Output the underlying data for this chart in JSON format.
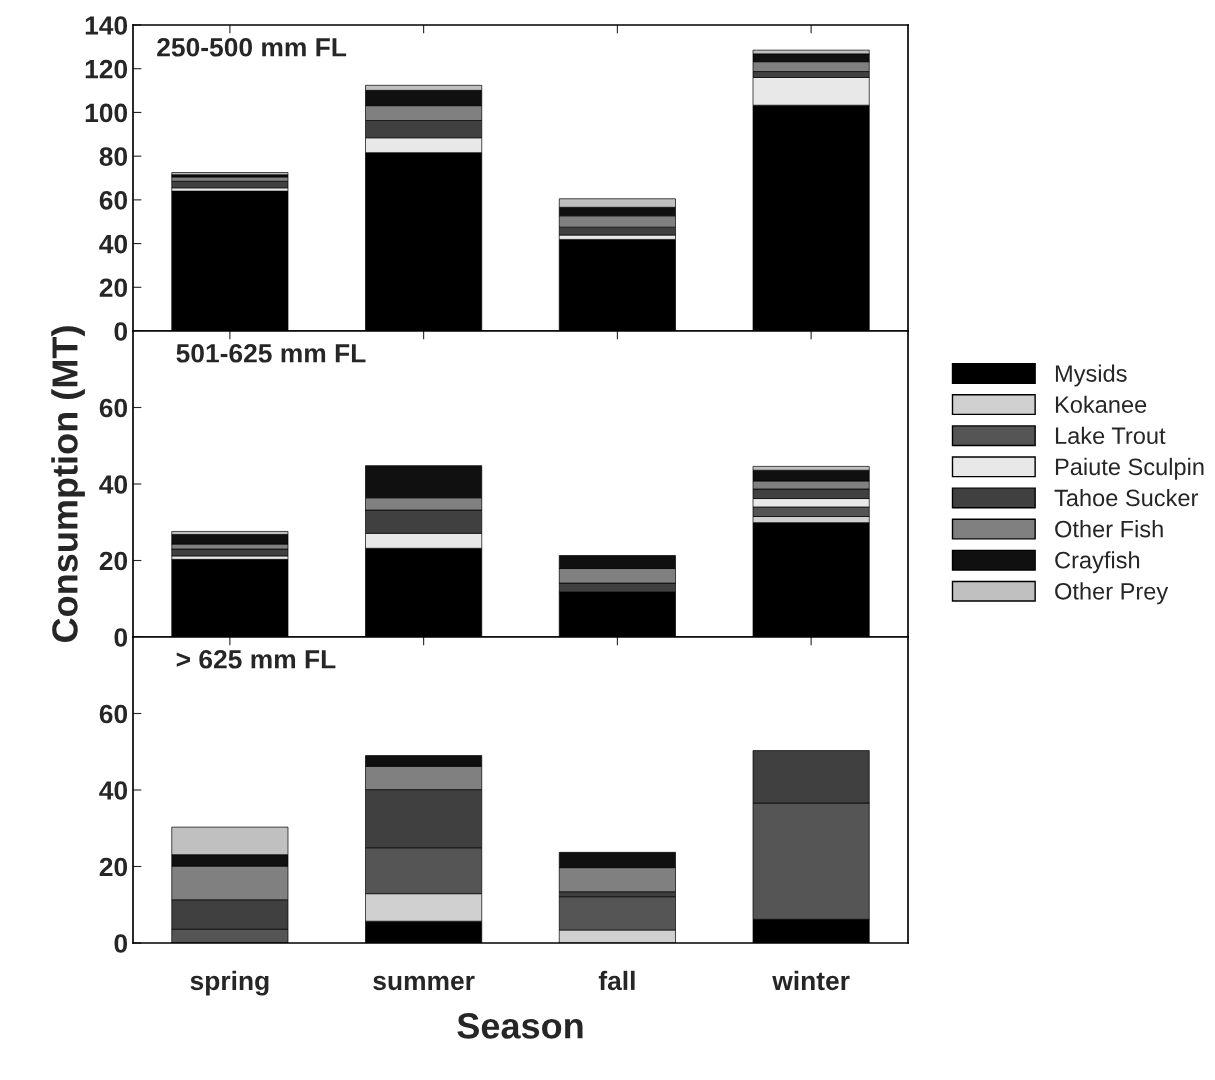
{
  "chart_data": [
    {
      "type": "bar",
      "stacked": true,
      "categories": [
        null,
        null,
        null,
        null
      ],
      "ylim": [
        0,
        140
      ],
      "yticks": [
        0,
        20,
        40,
        60,
        80,
        100,
        120,
        140
      ],
      "tick_labels": "y",
      "annotations": [
        "250-500 mm FL"
      ],
      "series": [
        {
          "color": "#000000",
          "values": [
            64,
            81.6,
            41.9,
            103.3
          ]
        },
        {
          "color": "#d0d0d0",
          "values": [
            null,
            null,
            null,
            null
          ]
        },
        {
          "color": "#555555",
          "values": [
            null,
            null,
            null,
            null
          ]
        },
        {
          "color": "#e8e8e8",
          "values": [
            1.5,
            6.8,
            2,
            12.7
          ]
        },
        {
          "color": "#404040",
          "values": [
            3,
            7.9,
            3.6,
            2.7
          ]
        },
        {
          "color": "#808080",
          "values": [
            2,
            6.8,
            5.2,
            4.5
          ]
        },
        {
          "color": "#101010",
          "values": [
            1,
            7,
            3.9,
            3.6
          ]
        },
        {
          "color": "#c0c0c0",
          "values": [
            1,
            2.3,
            3.9,
            1.7
          ]
        }
      ]
    },
    {
      "type": "bar",
      "stacked": true,
      "categories": [
        null,
        null,
        null,
        null
      ],
      "ylim": [
        0,
        80
      ],
      "yticks": [
        0,
        20,
        40,
        60
      ],
      "tick_labels": "y",
      "ylabel": "Consumption (MT)",
      "legend": "right",
      "annotations": [
        "501-625 mm FL"
      ],
      "series": [
        {
          "name": "Mysids",
          "color": "#000000",
          "values": [
            20.3,
            23.2,
            11.8,
            29.9
          ]
        },
        {
          "name": "Kokanee",
          "color": "#d0d0d0",
          "values": [
            null,
            null,
            null,
            1.6
          ]
        },
        {
          "name": "Lake Trout",
          "color": "#555555",
          "values": [
            null,
            null,
            null,
            2.5
          ]
        },
        {
          "name": "Paiute Sculpin",
          "color": "#e8e8e8",
          "values": [
            0.9,
            3.9,
            null,
            2.2
          ]
        },
        {
          "name": "Tahoe Sucker",
          "color": "#404040",
          "values": [
            1.8,
            6.1,
            2.3,
            2.5
          ]
        },
        {
          "name": "Other Fish",
          "color": "#808080",
          "values": [
            1.3,
            3.2,
            3.8,
            2.1
          ]
        },
        {
          "name": "Crayfish",
          "color": "#101010",
          "values": [
            2.5,
            8.4,
            3.4,
            2.8
          ]
        },
        {
          "name": "Other Prey",
          "color": "#c0c0c0",
          "values": [
            0.8,
            null,
            null,
            1.0
          ]
        }
      ]
    },
    {
      "type": "bar",
      "stacked": true,
      "categories": [
        "spring",
        "summer",
        "fall",
        "winter"
      ],
      "ylim": [
        0,
        80
      ],
      "yticks": [
        0,
        20,
        40,
        60
      ],
      "xlabel": "Season",
      "annotations": [
        "> 625 mm FL"
      ],
      "series": [
        {
          "color": "#000000",
          "values": [
            null,
            5.7,
            null,
            6.2
          ]
        },
        {
          "color": "#d0d0d0",
          "values": [
            null,
            7.2,
            3.4,
            null
          ]
        },
        {
          "color": "#555555",
          "values": [
            3.6,
            12,
            8.7,
            30.4
          ]
        },
        {
          "color": "#404040",
          "values": [
            7.7,
            15.2,
            1.3,
            13.7
          ]
        },
        {
          "color": "#808080",
          "values": [
            8.8,
            6.1,
            6.3,
            null
          ]
        },
        {
          "color": "#101010",
          "values": [
            3,
            2.8,
            4,
            null
          ]
        },
        {
          "color": "#c0c0c0",
          "values": [
            7.2,
            null,
            null,
            null
          ]
        }
      ]
    }
  ]
}
